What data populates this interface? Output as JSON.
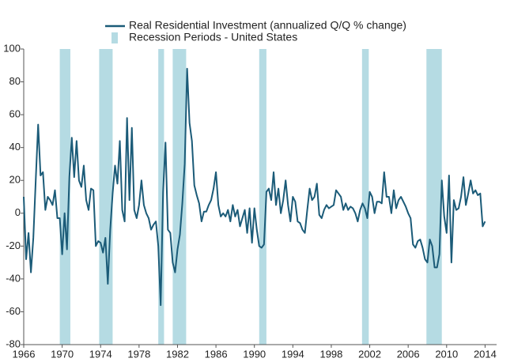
{
  "chart_data": {
    "type": "line",
    "series": [
      {
        "name": "Real Residential Investment (annualized Q/Q % change)",
        "color": "#1b5b78",
        "x": [
          1966,
          1966.25,
          1966.5,
          1966.75,
          1967,
          1967.25,
          1967.5,
          1967.75,
          1968,
          1968.25,
          1968.5,
          1968.75,
          1969,
          1969.25,
          1969.5,
          1969.75,
          1970,
          1970.25,
          1970.5,
          1970.75,
          1971,
          1971.25,
          1971.5,
          1971.75,
          1972,
          1972.25,
          1972.5,
          1972.75,
          1973,
          1973.25,
          1973.5,
          1973.75,
          1974,
          1974.25,
          1974.5,
          1974.75,
          1975,
          1975.25,
          1975.5,
          1975.75,
          1976,
          1976.25,
          1976.5,
          1976.75,
          1977,
          1977.25,
          1977.5,
          1977.75,
          1978,
          1978.25,
          1978.5,
          1978.75,
          1979,
          1979.25,
          1979.5,
          1979.75,
          1980,
          1980.25,
          1980.5,
          1980.75,
          1981,
          1981.25,
          1981.5,
          1981.75,
          1982,
          1982.25,
          1982.5,
          1982.75,
          1983,
          1983.25,
          1983.5,
          1983.75,
          1984,
          1984.25,
          1984.5,
          1984.75,
          1985,
          1985.25,
          1985.5,
          1985.75,
          1986,
          1986.25,
          1986.5,
          1986.75,
          1987,
          1987.25,
          1987.5,
          1987.75,
          1988,
          1988.25,
          1988.5,
          1988.75,
          1989,
          1989.25,
          1989.5,
          1989.75,
          1990,
          1990.25,
          1990.5,
          1990.75,
          1991,
          1991.25,
          1991.5,
          1991.75,
          1992,
          1992.25,
          1992.5,
          1992.75,
          1993,
          1993.25,
          1993.5,
          1993.75,
          1994,
          1994.25,
          1994.5,
          1994.75,
          1995,
          1995.25,
          1995.5,
          1995.75,
          1996,
          1996.25,
          1996.5,
          1996.75,
          1997,
          1997.25,
          1997.5,
          1997.75,
          1998,
          1998.25,
          1998.5,
          1998.75,
          1999,
          1999.25,
          1999.5,
          1999.75,
          2000,
          2000.25,
          2000.5,
          2000.75,
          2001,
          2001.25,
          2001.5,
          2001.75,
          2002,
          2002.25,
          2002.5,
          2002.75,
          2003,
          2003.25,
          2003.5,
          2003.75,
          2004,
          2004.25,
          2004.5,
          2004.75,
          2005,
          2005.25,
          2005.5,
          2005.75,
          2006,
          2006.25,
          2006.5,
          2006.75,
          2007,
          2007.25,
          2007.5,
          2007.75,
          2008,
          2008.25,
          2008.5,
          2008.75,
          2009,
          2009.25,
          2009.5,
          2009.75,
          2010,
          2010.25,
          2010.5,
          2010.75,
          2011,
          2011.25,
          2011.5,
          2011.75,
          2012,
          2012.25,
          2012.5,
          2012.75,
          2013,
          2013.25,
          2013.5,
          2013.75,
          2014
        ],
        "values": [
          10,
          -28,
          -12,
          -36,
          -15,
          20,
          54,
          23,
          25,
          2,
          10,
          8,
          5,
          14,
          -3,
          -3,
          -25,
          0,
          -22,
          22,
          46,
          22,
          44,
          20,
          16,
          29,
          8,
          2,
          15,
          14,
          -20,
          -17,
          -18,
          -24,
          -15,
          -43,
          -10,
          12,
          29,
          18,
          44,
          2,
          -5,
          58,
          8,
          52,
          2,
          -3,
          5,
          20,
          5,
          0,
          -3,
          -10,
          -7,
          -5,
          -20,
          -56,
          13,
          43,
          -10,
          -12,
          -30,
          -36,
          -22,
          -13,
          6,
          30,
          88,
          55,
          44,
          17,
          11,
          6,
          -5,
          1,
          1,
          5,
          8,
          15,
          25,
          5,
          -2,
          0,
          -2,
          2,
          -5,
          5,
          -2,
          2,
          -8,
          -3,
          2,
          -12,
          3,
          -18,
          3,
          -10,
          -20,
          -21,
          -19,
          13,
          15,
          8,
          25,
          5,
          15,
          0,
          8,
          20,
          5,
          -5,
          10,
          7,
          -5,
          -6,
          -10,
          -12,
          2,
          15,
          8,
          10,
          18,
          -1,
          -3,
          2,
          5,
          3,
          4,
          5,
          14,
          12,
          10,
          2,
          6,
          2,
          4,
          3,
          0,
          -5,
          2,
          6,
          3,
          -3,
          13,
          10,
          0,
          7,
          7,
          6,
          25,
          10,
          10,
          0,
          14,
          3,
          8,
          10,
          7,
          4,
          0,
          -3,
          -19,
          -21,
          -17,
          -16,
          -21,
          -28,
          -30,
          -16,
          -20,
          -33,
          -33,
          -25,
          20,
          -2,
          -12,
          23,
          -30,
          8,
          2,
          3,
          10,
          22,
          5,
          12,
          20,
          12,
          14,
          11,
          12,
          -8,
          -5
        ]
      }
    ],
    "recessions": {
      "name": "Recession Periods - United States",
      "color": "#b5dbe3",
      "periods": [
        [
          1969.75,
          1970.85
        ],
        [
          1973.85,
          1975.25
        ],
        [
          1980.0,
          1980.6
        ],
        [
          1981.5,
          1982.9
        ],
        [
          1990.5,
          1991.25
        ],
        [
          2001.2,
          2001.9
        ],
        [
          2007.9,
          2009.5
        ]
      ]
    },
    "xlim": [
      1966,
      2015.2
    ],
    "ylim": [
      -80,
      100
    ],
    "xticks": [
      1966,
      1970,
      1974,
      1978,
      1982,
      1986,
      1990,
      1994,
      1998,
      2002,
      2006,
      2010,
      2014
    ],
    "yticks": [
      -80,
      -60,
      -40,
      -20,
      0,
      20,
      40,
      60,
      80,
      100
    ]
  }
}
